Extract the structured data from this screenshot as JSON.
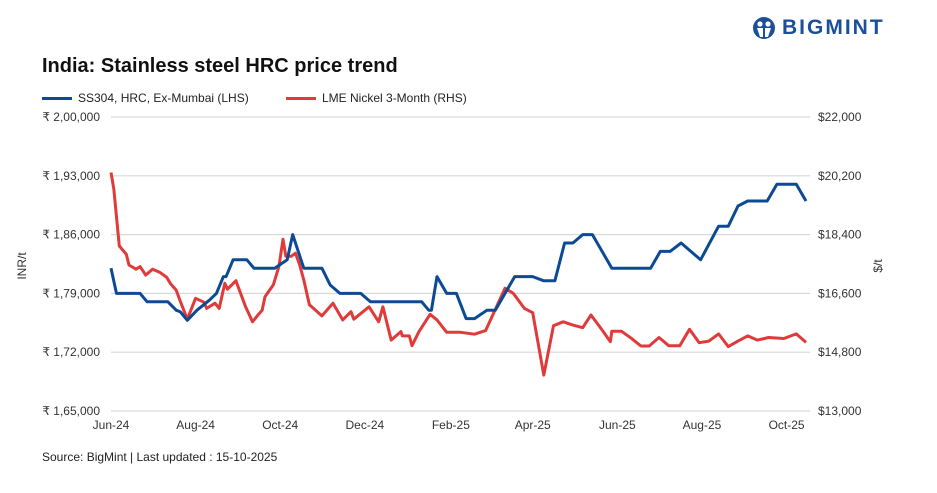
{
  "logo": {
    "text": "BIGMINT",
    "color": "#1b4f9c"
  },
  "title": "India: Stainless steel HRC price trend",
  "source": "Source: BigMint | Last updated : 15-10-2025",
  "chart_data": {
    "type": "line",
    "title": "India: Stainless steel HRC price trend",
    "ylabel_left": "INR/t",
    "ylabel_right": "$/t",
    "ylim_left": [
      165000,
      200000
    ],
    "ylim_right": [
      13000,
      22000
    ],
    "yticks_left": [
      "₹ 1,65,000",
      "₹ 1,72,000",
      "₹ 1,79,000",
      "₹ 1,86,000",
      "₹ 1,93,000",
      "₹ 2,00,000"
    ],
    "yticks_right": [
      "$13,000",
      "$14,800",
      "$16,600",
      "$18,400",
      "$20,200",
      "$22,000"
    ],
    "xticks": [
      {
        "label": "Jun-24",
        "date": "2024-06-01"
      },
      {
        "label": "Aug-24",
        "date": "2024-08-01"
      },
      {
        "label": "Oct-24",
        "date": "2024-10-01"
      },
      {
        "label": "Dec-24",
        "date": "2024-12-01"
      },
      {
        "label": "Feb-25",
        "date": "2025-02-01"
      },
      {
        "label": "Apr-25",
        "date": "2025-04-01"
      },
      {
        "label": "Jun-25",
        "date": "2025-06-01"
      },
      {
        "label": "Aug-25",
        "date": "2025-08-01"
      },
      {
        "label": "Oct-25",
        "date": "2025-10-01"
      }
    ],
    "grid": true,
    "legend_position": "top-left",
    "series": [
      {
        "name": "SS304, HRC, Ex-Mumbai (LHS)",
        "axis": "left",
        "color": "#0d4a94",
        "points": [
          [
            "2024-06-01",
            182000
          ],
          [
            "2024-06-05",
            179000
          ],
          [
            "2024-06-22",
            179000
          ],
          [
            "2024-06-27",
            178000
          ],
          [
            "2024-07-12",
            178000
          ],
          [
            "2024-07-18",
            177000
          ],
          [
            "2024-07-21",
            176800
          ],
          [
            "2024-07-26",
            175800
          ],
          [
            "2024-08-02",
            177000
          ],
          [
            "2024-08-11",
            178200
          ],
          [
            "2024-08-16",
            179000
          ],
          [
            "2024-08-21",
            181000
          ],
          [
            "2024-08-23",
            181000
          ],
          [
            "2024-08-28",
            183000
          ],
          [
            "2024-09-07",
            183000
          ],
          [
            "2024-09-12",
            182000
          ],
          [
            "2024-09-27",
            182000
          ],
          [
            "2024-10-06",
            183000
          ],
          [
            "2024-10-10",
            186000
          ],
          [
            "2024-10-18",
            182000
          ],
          [
            "2024-10-31",
            182000
          ],
          [
            "2024-11-06",
            180000
          ],
          [
            "2024-11-13",
            179000
          ],
          [
            "2024-11-28",
            179000
          ],
          [
            "2024-12-05",
            178000
          ],
          [
            "2025-01-11",
            178000
          ],
          [
            "2025-01-16",
            177000
          ],
          [
            "2025-01-18",
            177000
          ],
          [
            "2025-01-22",
            181000
          ],
          [
            "2025-01-29",
            179000
          ],
          [
            "2025-02-05",
            179000
          ],
          [
            "2025-02-12",
            176000
          ],
          [
            "2025-02-18",
            176000
          ],
          [
            "2025-02-27",
            177000
          ],
          [
            "2025-03-05",
            177000
          ],
          [
            "2025-03-19",
            181000
          ],
          [
            "2025-04-01",
            181000
          ],
          [
            "2025-04-09",
            180500
          ],
          [
            "2025-04-17",
            180500
          ],
          [
            "2025-04-24",
            185000
          ],
          [
            "2025-04-30",
            185000
          ],
          [
            "2025-05-07",
            186000
          ],
          [
            "2025-05-14",
            186000
          ],
          [
            "2025-05-28",
            182000
          ],
          [
            "2025-06-25",
            182000
          ],
          [
            "2025-07-02",
            184000
          ],
          [
            "2025-07-09",
            184000
          ],
          [
            "2025-07-17",
            185000
          ],
          [
            "2025-07-31",
            183000
          ],
          [
            "2025-08-13",
            187000
          ],
          [
            "2025-08-20",
            187000
          ],
          [
            "2025-08-27",
            189400
          ],
          [
            "2025-09-03",
            190000
          ],
          [
            "2025-09-17",
            190000
          ],
          [
            "2025-09-24",
            192000
          ],
          [
            "2025-10-08",
            192000
          ],
          [
            "2025-10-15",
            190000
          ]
        ]
      },
      {
        "name": "LME Nickel 3-Month (RHS)",
        "axis": "right",
        "color": "#e03a3a",
        "points": [
          [
            "2024-06-01",
            20300
          ],
          [
            "2024-06-03",
            19800
          ],
          [
            "2024-06-07",
            18050
          ],
          [
            "2024-06-12",
            17800
          ],
          [
            "2024-06-14",
            17470
          ],
          [
            "2024-06-19",
            17340
          ],
          [
            "2024-06-22",
            17420
          ],
          [
            "2024-06-26",
            17160
          ],
          [
            "2024-07-01",
            17340
          ],
          [
            "2024-07-06",
            17250
          ],
          [
            "2024-07-11",
            17100
          ],
          [
            "2024-07-14",
            16890
          ],
          [
            "2024-07-18",
            16700
          ],
          [
            "2024-07-21",
            16350
          ],
          [
            "2024-07-26",
            15810
          ],
          [
            "2024-08-01",
            16450
          ],
          [
            "2024-08-07",
            16330
          ],
          [
            "2024-08-09",
            16140
          ],
          [
            "2024-08-15",
            16300
          ],
          [
            "2024-08-18",
            16140
          ],
          [
            "2024-08-22",
            16910
          ],
          [
            "2024-08-24",
            16730
          ],
          [
            "2024-08-30",
            16990
          ],
          [
            "2024-09-06",
            16190
          ],
          [
            "2024-09-11",
            15730
          ],
          [
            "2024-09-15",
            15940
          ],
          [
            "2024-09-18",
            16090
          ],
          [
            "2024-09-20",
            16500
          ],
          [
            "2024-09-26",
            16860
          ],
          [
            "2024-09-30",
            17420
          ],
          [
            "2024-10-03",
            18260
          ],
          [
            "2024-10-05",
            17740
          ],
          [
            "2024-10-09",
            17740
          ],
          [
            "2024-10-12",
            17830
          ],
          [
            "2024-10-15",
            17470
          ],
          [
            "2024-10-18",
            17010
          ],
          [
            "2024-10-22",
            16250
          ],
          [
            "2024-10-31",
            15910
          ],
          [
            "2024-11-08",
            16300
          ],
          [
            "2024-11-15",
            15790
          ],
          [
            "2024-11-21",
            16040
          ],
          [
            "2024-11-23",
            15810
          ],
          [
            "2024-12-04",
            16190
          ],
          [
            "2024-12-11",
            15730
          ],
          [
            "2024-12-14",
            16190
          ],
          [
            "2024-12-20",
            15170
          ],
          [
            "2024-12-27",
            15430
          ],
          [
            "2024-12-28",
            15300
          ],
          [
            "2025-01-02",
            15300
          ],
          [
            "2025-01-04",
            15000
          ],
          [
            "2025-01-09",
            15430
          ],
          [
            "2025-01-17",
            15960
          ],
          [
            "2025-01-22",
            15790
          ],
          [
            "2025-01-29",
            15410
          ],
          [
            "2025-02-08",
            15410
          ],
          [
            "2025-02-18",
            15350
          ],
          [
            "2025-02-26",
            15460
          ],
          [
            "2025-03-12",
            16760
          ],
          [
            "2025-03-18",
            16600
          ],
          [
            "2025-03-26",
            16140
          ],
          [
            "2025-04-01",
            16010
          ],
          [
            "2025-04-09",
            14100
          ],
          [
            "2025-04-16",
            15610
          ],
          [
            "2025-04-23",
            15730
          ],
          [
            "2025-04-30",
            15630
          ],
          [
            "2025-05-07",
            15550
          ],
          [
            "2025-05-13",
            15940
          ],
          [
            "2025-05-21",
            15480
          ],
          [
            "2025-05-27",
            15120
          ],
          [
            "2025-05-28",
            15440
          ],
          [
            "2025-06-04",
            15440
          ],
          [
            "2025-06-11",
            15230
          ],
          [
            "2025-06-18",
            14990
          ],
          [
            "2025-06-24",
            14990
          ],
          [
            "2025-07-01",
            15250
          ],
          [
            "2025-07-08",
            15000
          ],
          [
            "2025-07-16",
            15000
          ],
          [
            "2025-07-23",
            15500
          ],
          [
            "2025-07-30",
            15090
          ],
          [
            "2025-08-06",
            15140
          ],
          [
            "2025-08-13",
            15360
          ],
          [
            "2025-08-20",
            14970
          ],
          [
            "2025-08-27",
            15140
          ],
          [
            "2025-09-03",
            15300
          ],
          [
            "2025-09-10",
            15170
          ],
          [
            "2025-09-18",
            15250
          ],
          [
            "2025-09-29",
            15220
          ],
          [
            "2025-10-08",
            15360
          ],
          [
            "2025-10-15",
            15100
          ]
        ]
      }
    ]
  }
}
